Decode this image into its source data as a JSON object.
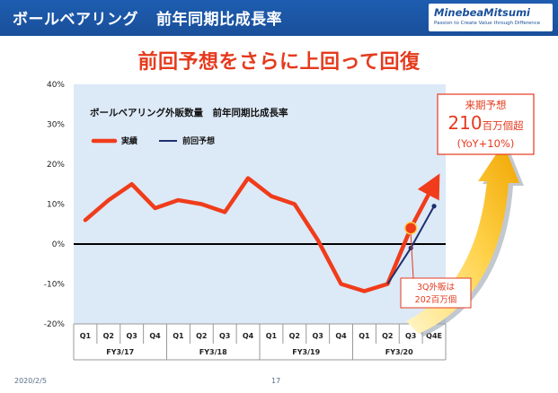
{
  "header": {
    "title": "ボールベアリング",
    "subtitle": "前年同期比成長率",
    "logo_name": "MinebeaMitsumi",
    "logo_tagline": "Passion to Create Value through Difference"
  },
  "headline": "前回予想をさらに上回って回復",
  "chart_data": {
    "type": "line",
    "title": "ボールベアリング外販数量　前年同期比成長率",
    "categories": [
      "Q1",
      "Q2",
      "Q3",
      "Q4",
      "Q1",
      "Q2",
      "Q3",
      "Q4",
      "Q1",
      "Q2",
      "Q3",
      "Q4",
      "Q1",
      "Q2",
      "Q3",
      "Q4E"
    ],
    "groups": [
      {
        "label": "FY3/17",
        "start": 0,
        "end": 3
      },
      {
        "label": "FY3/18",
        "start": 4,
        "end": 7
      },
      {
        "label": "FY3/19",
        "start": 8,
        "end": 11
      },
      {
        "label": "FY3/20",
        "start": 12,
        "end": 15
      }
    ],
    "y_ticks": [
      "40%",
      "30%",
      "20%",
      "10%",
      "0%",
      "-10%",
      "-20%"
    ],
    "ylim": [
      -20,
      40
    ],
    "series": [
      {
        "name": "実績",
        "color": "#f03c1a",
        "values": [
          6,
          11,
          15,
          9,
          11,
          10,
          8,
          16.5,
          12,
          10,
          1,
          -10,
          -11.8,
          -10,
          4,
          15
        ]
      },
      {
        "name": "前回予想",
        "color": "#1f2f6e",
        "values": [
          null,
          null,
          null,
          null,
          null,
          null,
          null,
          null,
          null,
          null,
          null,
          null,
          null,
          -10,
          -1,
          9.5
        ]
      }
    ],
    "grid": false,
    "legend_position": "top-left"
  },
  "callout_forecast": {
    "line1": "来期予想",
    "line2_num": "210",
    "line2_unit": "百万個超",
    "line3": "(YoY+10%)"
  },
  "callout_3q": {
    "line1": "3Q外販は",
    "line2": "202百万個"
  },
  "footer": {
    "date": "2020/2/5",
    "page": "17"
  },
  "colors": {
    "header_bg": "#1a4f9a",
    "headline": "#e53a1e",
    "plot_bg": "#dce9f7",
    "actual": "#f03c1a",
    "forecast": "#1f2f6e"
  }
}
